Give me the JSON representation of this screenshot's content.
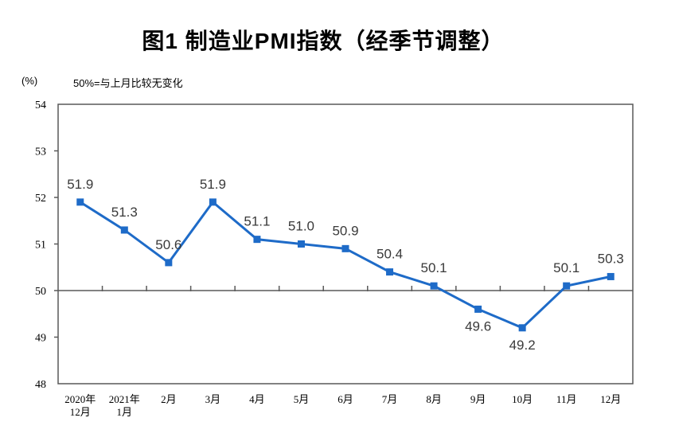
{
  "title": "图1 制造业PMI指数（经季节调整）",
  "y_unit_label": "(%)",
  "reference_note": "50%=与上月比较无变化",
  "colors": {
    "line": "#1E6BC8",
    "frame": "#595959",
    "data_label": "#3A3A3A",
    "axis_text": "#000000"
  },
  "chart_data": {
    "type": "line",
    "categories": [
      "2020年\n12月",
      "2021年\n1月",
      "2月",
      "3月",
      "4月",
      "5月",
      "6月",
      "7月",
      "8月",
      "9月",
      "10月",
      "11月",
      "12月"
    ],
    "values": [
      51.9,
      51.3,
      50.6,
      51.9,
      51.1,
      51.0,
      50.9,
      50.4,
      50.1,
      49.6,
      49.2,
      50.1,
      50.3
    ],
    "point_labels": [
      "51.9",
      "51.3",
      "50.6",
      "51.9",
      "51.1",
      "51.0",
      "50.9",
      "50.4",
      "50.1",
      "49.6",
      "49.2",
      "50.1",
      "50.3"
    ],
    "label_side": [
      "above",
      "above",
      "above",
      "above",
      "above",
      "above",
      "above",
      "above",
      "above",
      "below",
      "below",
      "above",
      "above"
    ],
    "ylim": [
      48,
      54
    ],
    "y_ticks": [
      48,
      49,
      50,
      51,
      52,
      53,
      54
    ],
    "reference_line": 50,
    "marker": "square",
    "grid": "off",
    "legend": "none",
    "title": "图1 制造业PMI指数（经季节调整）",
    "ylabel": "(%)"
  }
}
